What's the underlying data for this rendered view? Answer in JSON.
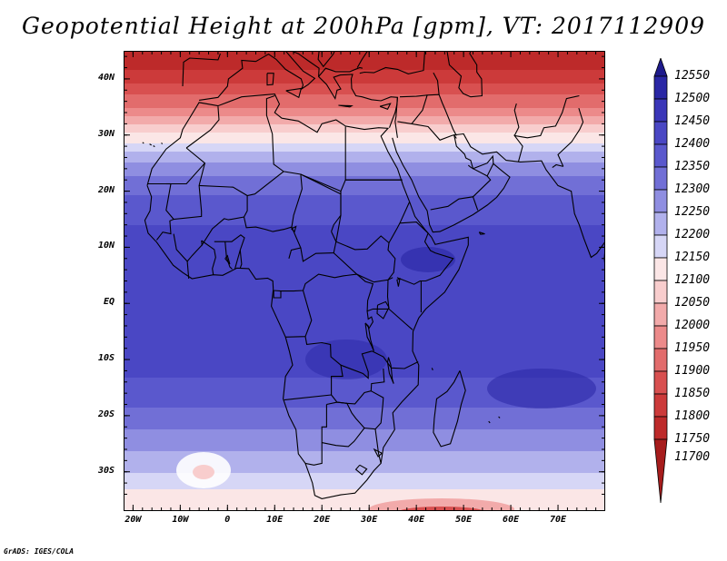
{
  "title": "Geopotential Height at 200hPa [gpm], VT: 2017112909",
  "credit": "GrADS: IGES/COLA",
  "map": {
    "lon_range": [
      -22,
      80
    ],
    "lat_range": [
      -37,
      45
    ],
    "lat_ticks": [
      {
        "value": 40,
        "label": "40N"
      },
      {
        "value": 30,
        "label": "30N"
      },
      {
        "value": 20,
        "label": "20N"
      },
      {
        "value": 10,
        "label": "10N"
      },
      {
        "value": 0,
        "label": "EQ"
      },
      {
        "value": -10,
        "label": "10S"
      },
      {
        "value": -20,
        "label": "20S"
      },
      {
        "value": -30,
        "label": "30S"
      }
    ],
    "lon_ticks": [
      {
        "value": -20,
        "label": "20W"
      },
      {
        "value": -10,
        "label": "10W"
      },
      {
        "value": 0,
        "label": "0"
      },
      {
        "value": 10,
        "label": "10E"
      },
      {
        "value": 20,
        "label": "20E"
      },
      {
        "value": 30,
        "label": "30E"
      },
      {
        "value": 40,
        "label": "40E"
      },
      {
        "value": 50,
        "label": "50E"
      },
      {
        "value": 60,
        "label": "60E"
      },
      {
        "value": 70,
        "label": "70E"
      }
    ],
    "field_description_by_latitude": [
      {
        "lat": 44,
        "value": 11760
      },
      {
        "lat": 40,
        "value": 11830
      },
      {
        "lat": 35,
        "value": 11950
      },
      {
        "lat": 31,
        "value": 12080
      },
      {
        "lat": 28,
        "value": 12170
      },
      {
        "lat": 24,
        "value": 12280
      },
      {
        "lat": 18,
        "value": 12370
      },
      {
        "lat": 10,
        "value": 12430
      },
      {
        "lat": 0,
        "value": 12450
      },
      {
        "lat": -10,
        "value": 12430
      },
      {
        "lat": -18,
        "value": 12360
      },
      {
        "lat": -24,
        "value": 12280
      },
      {
        "lat": -30,
        "value": 12200
      },
      {
        "lat": -34,
        "value": 12140
      },
      {
        "lat": -37,
        "value": 12100
      }
    ]
  },
  "colorbar": {
    "levels": [
      {
        "label": "12550",
        "color": "#1e1a8c"
      },
      {
        "label": "12500",
        "color": "#2a27a5"
      },
      {
        "label": "12450",
        "color": "#3a36b8"
      },
      {
        "label": "12400",
        "color": "#4a47c4"
      },
      {
        "label": "12350",
        "color": "#5a58cd"
      },
      {
        "label": "12300",
        "color": "#716fd6"
      },
      {
        "label": "12250",
        "color": "#8f8ee1"
      },
      {
        "label": "12200",
        "color": "#b1b1ec"
      },
      {
        "label": "12150",
        "color": "#d6d6f6"
      },
      {
        "label": "12100",
        "color": "#fbe6e6"
      },
      {
        "label": "12050",
        "color": "#f8cdcd"
      },
      {
        "label": "12000",
        "color": "#f2aaaa"
      },
      {
        "label": "11950",
        "color": "#ec8a8a"
      },
      {
        "label": "11900",
        "color": "#e26c6c"
      },
      {
        "label": "11850",
        "color": "#d85050"
      },
      {
        "label": "11800",
        "color": "#cc3a3a"
      },
      {
        "label": "11750",
        "color": "#bd2a2a"
      },
      {
        "label": "11700",
        "color": "#a61c1c"
      }
    ]
  }
}
